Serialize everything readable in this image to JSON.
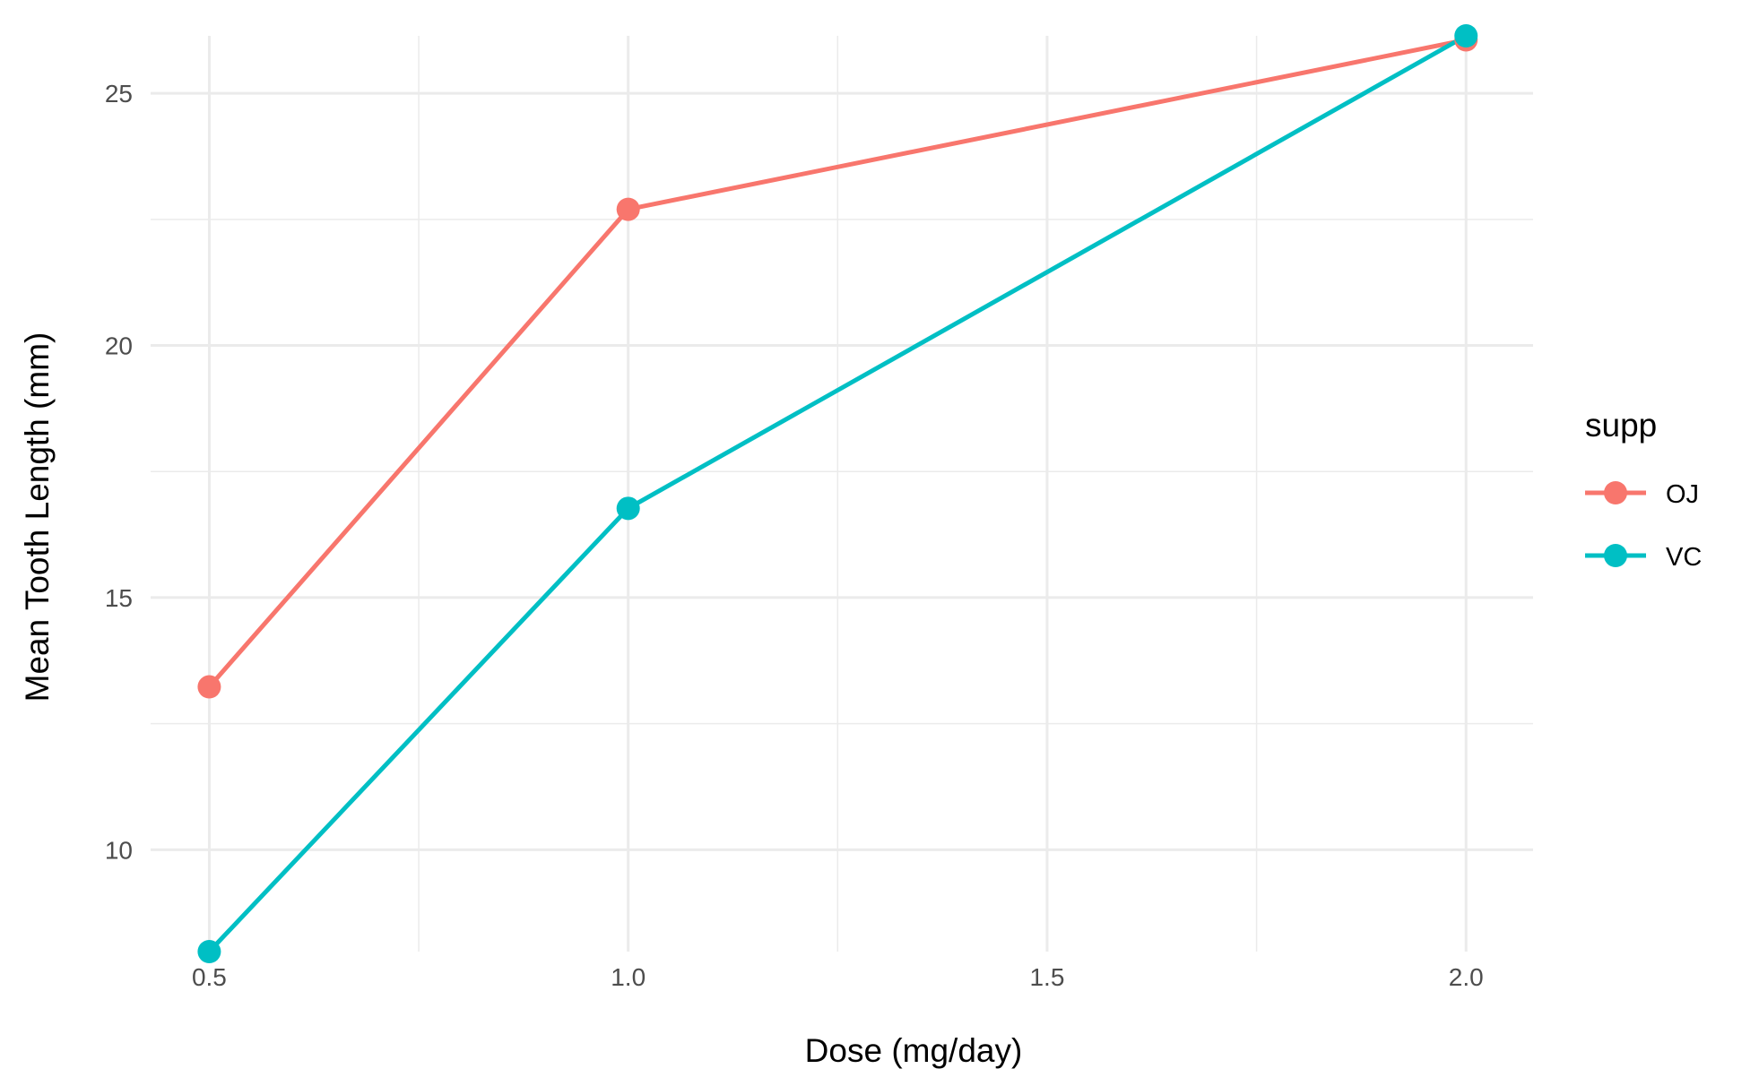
{
  "chart_data": {
    "type": "line",
    "x": [
      0.5,
      1.0,
      2.0
    ],
    "series": [
      {
        "name": "OJ",
        "values": [
          13.23,
          22.7,
          26.06
        ],
        "color": "#F8766D"
      },
      {
        "name": "VC",
        "values": [
          7.98,
          16.77,
          26.14
        ],
        "color": "#00BFC4"
      }
    ],
    "xlabel": "Dose (mg/day)",
    "ylabel": "Mean Tooth Length (mm)",
    "x_ticks": [
      {
        "value": 0.5,
        "label": "0.5"
      },
      {
        "value": 1.0,
        "label": "1.0"
      },
      {
        "value": 1.5,
        "label": "1.5"
      },
      {
        "value": 2.0,
        "label": "2.0"
      }
    ],
    "y_ticks": [
      {
        "value": 10,
        "label": "10"
      },
      {
        "value": 15,
        "label": "15"
      },
      {
        "value": 20,
        "label": "20"
      },
      {
        "value": 25,
        "label": "25"
      }
    ],
    "xlim": [
      0.43,
      2.08
    ],
    "ylim": [
      7.98,
      26.14
    ],
    "grid": true,
    "legend": {
      "title": "supp",
      "position": "right",
      "entries": [
        "OJ",
        "VC"
      ]
    },
    "gridline_color": "#EBEBEB",
    "axis_text_color": "#4D4D4D"
  }
}
